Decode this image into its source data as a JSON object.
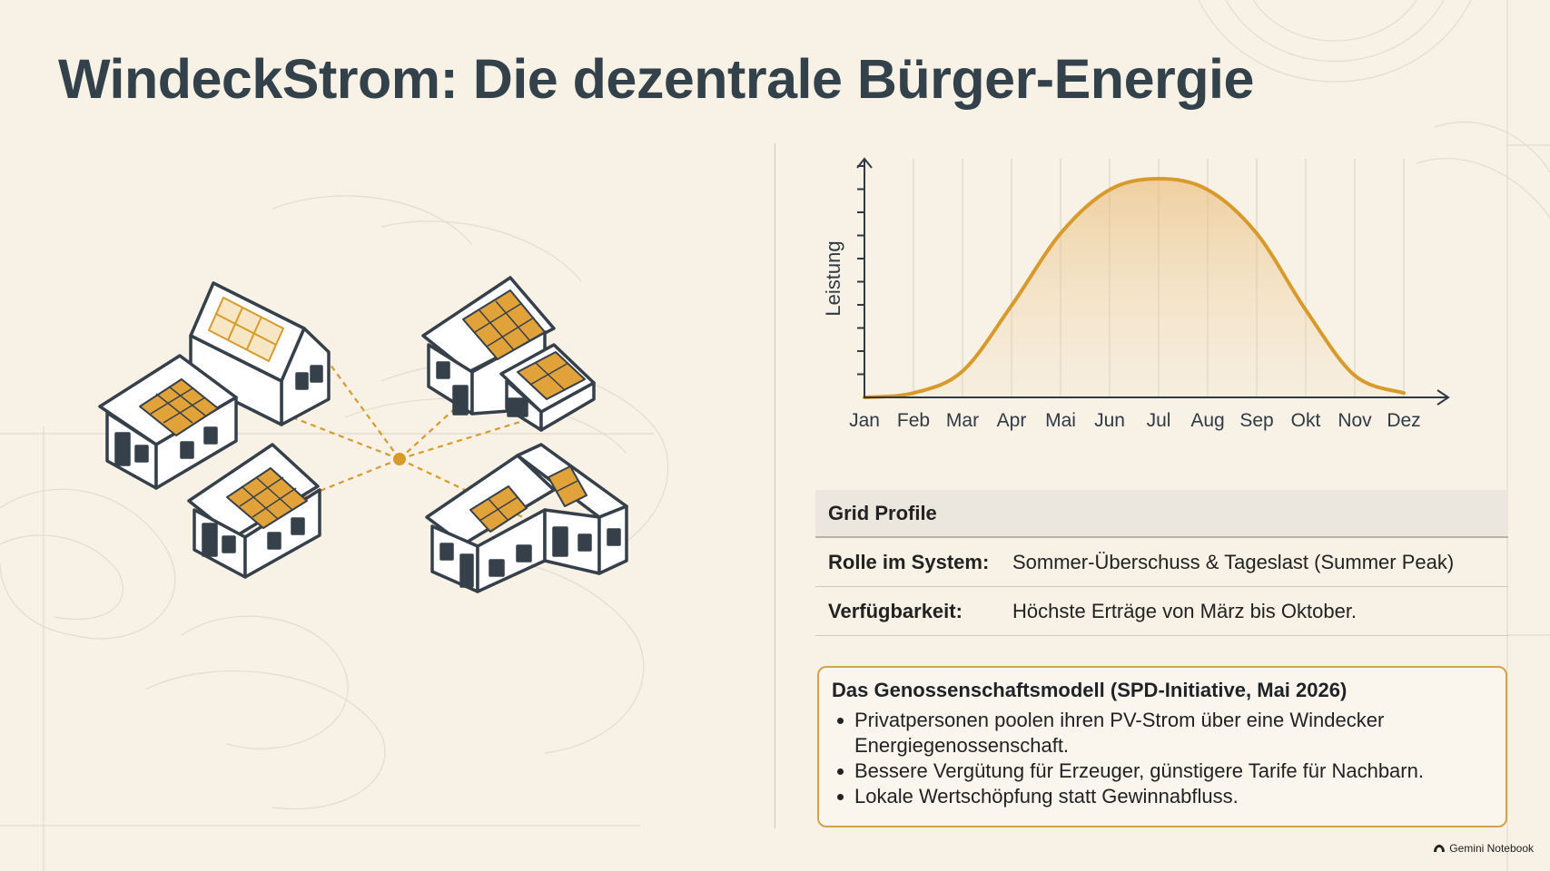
{
  "title": "WindeckStrom: Die dezentrale Bürger-Energie",
  "colors": {
    "background": "#f7f1e6",
    "accent": "#d79a2b",
    "solar_panel": "#e2a23a",
    "house_outline": "#36404a",
    "text_dark": "#2f3a44"
  },
  "chart_data": {
    "type": "area",
    "ylabel": "Leistung",
    "xlabel": "",
    "categories": [
      "Jan",
      "Feb",
      "Mar",
      "Apr",
      "Mai",
      "Jun",
      "Jul",
      "Aug",
      "Sep",
      "Okt",
      "Nov",
      "Dez"
    ],
    "series": [
      {
        "values": [
          0.0,
          0.02,
          0.12,
          0.42,
          0.75,
          0.95,
          1.0,
          0.95,
          0.75,
          0.4,
          0.1,
          0.02
        ]
      }
    ],
    "ylim": [
      0,
      1.05
    ],
    "grid": "vertical",
    "y_ticks_unlabeled": true,
    "line_color": "#d79a2b"
  },
  "grid_profile": {
    "header": "Grid Profile",
    "rows": [
      {
        "label": "Rolle im System:",
        "value": "Sommer-Überschuss & Tageslast (Summer Peak)"
      },
      {
        "label": "Verfügbarkeit:",
        "value": "Höchste Erträge von März bis Oktober."
      }
    ]
  },
  "model": {
    "title": "Das Genossenschaftsmodell (SPD-Initiative, Mai 2026)",
    "bullets": [
      "Privatpersonen poolen ihren PV-Strom über eine Windecker Energiegenossenschaft.",
      "Bessere Vergütung für Erzeuger, günstigere Tarife für Nachbarn.",
      "Lokale Wertschöpfung statt Gewinnabfluss."
    ]
  },
  "illustration": {
    "houses": 5,
    "icons": [
      "house-icon",
      "solar-panel-icon",
      "hub-node-icon"
    ]
  },
  "brand": {
    "label": "Gemini Notebook",
    "icon": "gemini-logo-icon"
  }
}
